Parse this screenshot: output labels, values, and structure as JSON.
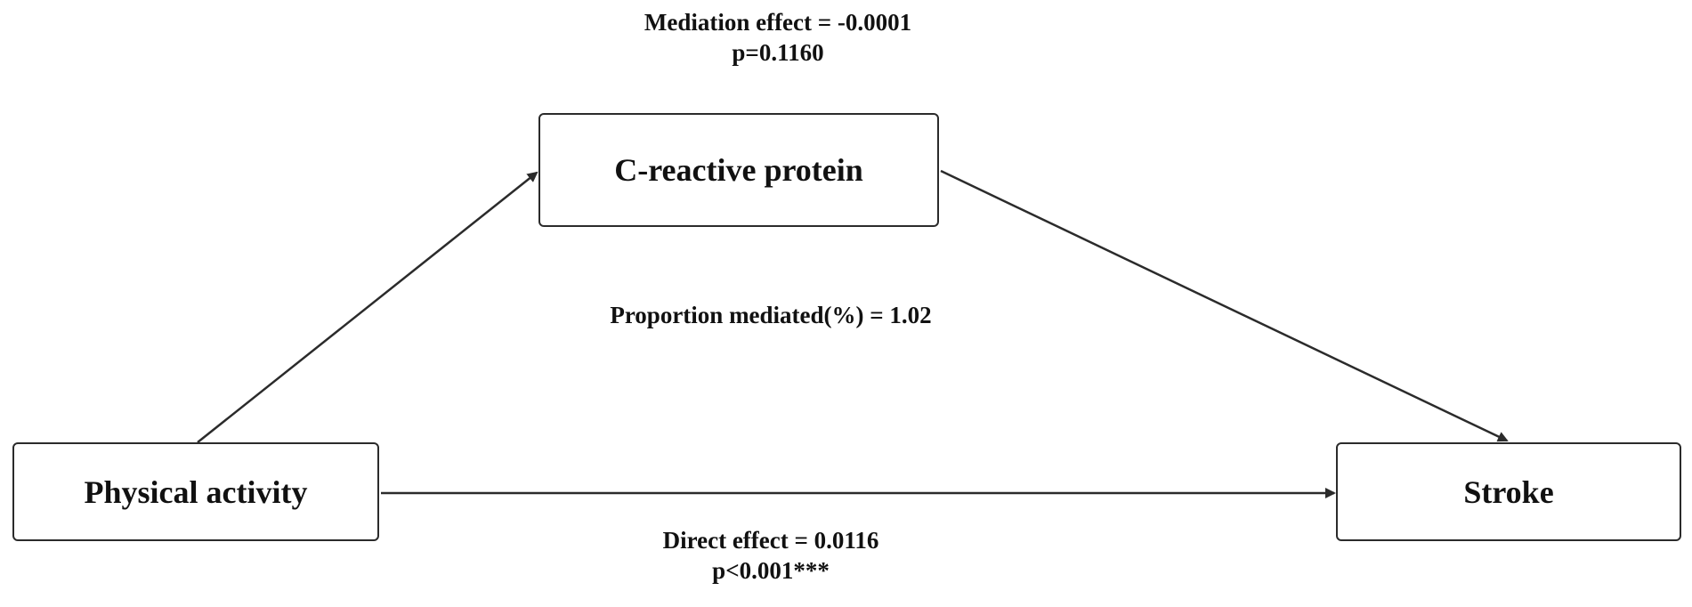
{
  "nodes": {
    "mediator": {
      "label": "C-reactive protein"
    },
    "exposure": {
      "label": "Physical activity"
    },
    "outcome": {
      "label": "Stroke"
    }
  },
  "annotations": {
    "mediation_effect": {
      "line1": "Mediation effect = -0.0001",
      "line2": "p=0.1160"
    },
    "proportion_mediated": {
      "line1": "Proportion mediated(%) = 1.02"
    },
    "direct_effect": {
      "line1": "Direct effect = 0.0116",
      "line2": "p<0.001***"
    }
  },
  "edges": [
    {
      "from": "Physical activity",
      "to": "C-reactive protein"
    },
    {
      "from": "C-reactive protein",
      "to": "Stroke"
    },
    {
      "from": "Physical activity",
      "to": "Stroke"
    }
  ],
  "colors": {
    "stroke": "#2b2b2b",
    "text": "#111111",
    "background": "#ffffff"
  }
}
